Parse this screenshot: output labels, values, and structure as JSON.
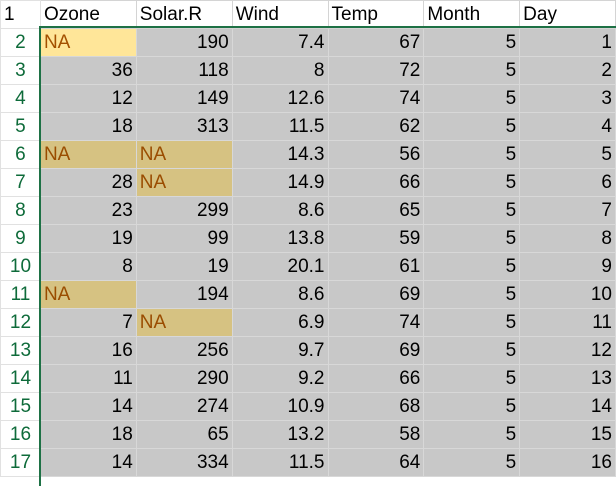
{
  "columns": [
    "Ozone",
    "Solar.R",
    "Wind",
    "Temp",
    "Month",
    "Day"
  ],
  "header_row_number": "1",
  "rows": [
    {
      "num": "2",
      "cells": [
        "NA",
        "190",
        "7.4",
        "67",
        "5",
        "1"
      ]
    },
    {
      "num": "3",
      "cells": [
        "36",
        "118",
        "8",
        "72",
        "5",
        "2"
      ]
    },
    {
      "num": "4",
      "cells": [
        "12",
        "149",
        "12.6",
        "74",
        "5",
        "3"
      ]
    },
    {
      "num": "5",
      "cells": [
        "18",
        "313",
        "11.5",
        "62",
        "5",
        "4"
      ]
    },
    {
      "num": "6",
      "cells": [
        "NA",
        "NA",
        "14.3",
        "56",
        "5",
        "5"
      ]
    },
    {
      "num": "7",
      "cells": [
        "28",
        "NA",
        "14.9",
        "66",
        "5",
        "6"
      ]
    },
    {
      "num": "8",
      "cells": [
        "23",
        "299",
        "8.6",
        "65",
        "5",
        "7"
      ]
    },
    {
      "num": "9",
      "cells": [
        "19",
        "99",
        "13.8",
        "59",
        "5",
        "8"
      ]
    },
    {
      "num": "10",
      "cells": [
        "8",
        "19",
        "20.1",
        "61",
        "5",
        "9"
      ]
    },
    {
      "num": "11",
      "cells": [
        "NA",
        "194",
        "8.6",
        "69",
        "5",
        "10"
      ]
    },
    {
      "num": "12",
      "cells": [
        "7",
        "NA",
        "6.9",
        "74",
        "5",
        "11"
      ]
    },
    {
      "num": "13",
      "cells": [
        "16",
        "256",
        "9.7",
        "69",
        "5",
        "12"
      ]
    },
    {
      "num": "14",
      "cells": [
        "11",
        "290",
        "9.2",
        "66",
        "5",
        "13"
      ]
    },
    {
      "num": "15",
      "cells": [
        "14",
        "274",
        "10.9",
        "68",
        "5",
        "14"
      ]
    },
    {
      "num": "16",
      "cells": [
        "18",
        "65",
        "13.2",
        "58",
        "5",
        "15"
      ]
    },
    {
      "num": "17",
      "cells": [
        "14",
        "334",
        "11.5",
        "64",
        "5",
        "16"
      ]
    }
  ],
  "colors": {
    "selection_border": "#1e7145",
    "row_number_text": "#0e6b3a",
    "selected_cell_fill": "#c8c8c8",
    "na_fill": "#d6c282",
    "na_text": "#9a4c00",
    "active_cell_fill": "#ffe699"
  }
}
